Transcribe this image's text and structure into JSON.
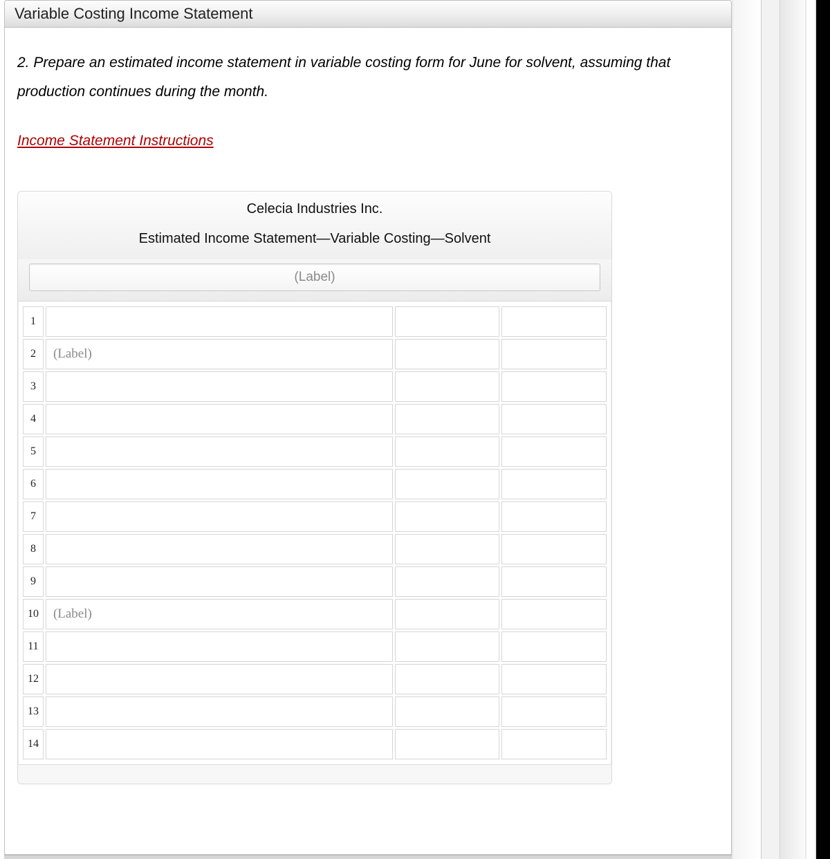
{
  "panel": {
    "title": "Variable Costing Income Statement"
  },
  "instruction": "2. Prepare an estimated income statement in variable costing form for June for solvent, assuming that production continues during the month.",
  "link_text": "Income Statement Instructions",
  "statement": {
    "company": "Celecia Industries Inc.",
    "subtitle": "Estimated Income Statement—Variable Costing—Solvent",
    "top_label_placeholder": "(Label)",
    "columns": [
      "rownum",
      "description",
      "value1",
      "value2"
    ],
    "rows": [
      {
        "num": "1",
        "desc_placeholder": "",
        "v1": "",
        "v2": ""
      },
      {
        "num": "2",
        "desc_placeholder": "(Label)",
        "v1": "",
        "v2": ""
      },
      {
        "num": "3",
        "desc_placeholder": "",
        "v1": "",
        "v2": ""
      },
      {
        "num": "4",
        "desc_placeholder": "",
        "v1": "",
        "v2": ""
      },
      {
        "num": "5",
        "desc_placeholder": "",
        "v1": "",
        "v2": ""
      },
      {
        "num": "6",
        "desc_placeholder": "",
        "v1": "",
        "v2": ""
      },
      {
        "num": "7",
        "desc_placeholder": "",
        "v1": "",
        "v2": ""
      },
      {
        "num": "8",
        "desc_placeholder": "",
        "v1": "",
        "v2": ""
      },
      {
        "num": "9",
        "desc_placeholder": "",
        "v1": "",
        "v2": ""
      },
      {
        "num": "10",
        "desc_placeholder": "(Label)",
        "v1": "",
        "v2": ""
      },
      {
        "num": "11",
        "desc_placeholder": "",
        "v1": "",
        "v2": ""
      },
      {
        "num": "12",
        "desc_placeholder": "",
        "v1": "",
        "v2": ""
      },
      {
        "num": "13",
        "desc_placeholder": "",
        "v1": "",
        "v2": ""
      },
      {
        "num": "14",
        "desc_placeholder": "",
        "v1": "",
        "v2": ""
      }
    ]
  },
  "colors": {
    "header_gradient_top": "#fdfdfd",
    "header_gradient_bottom": "#dcdcdc",
    "link_color": "#b00000",
    "border": "#d6d6d6",
    "placeholder": "#8a8a8a"
  }
}
